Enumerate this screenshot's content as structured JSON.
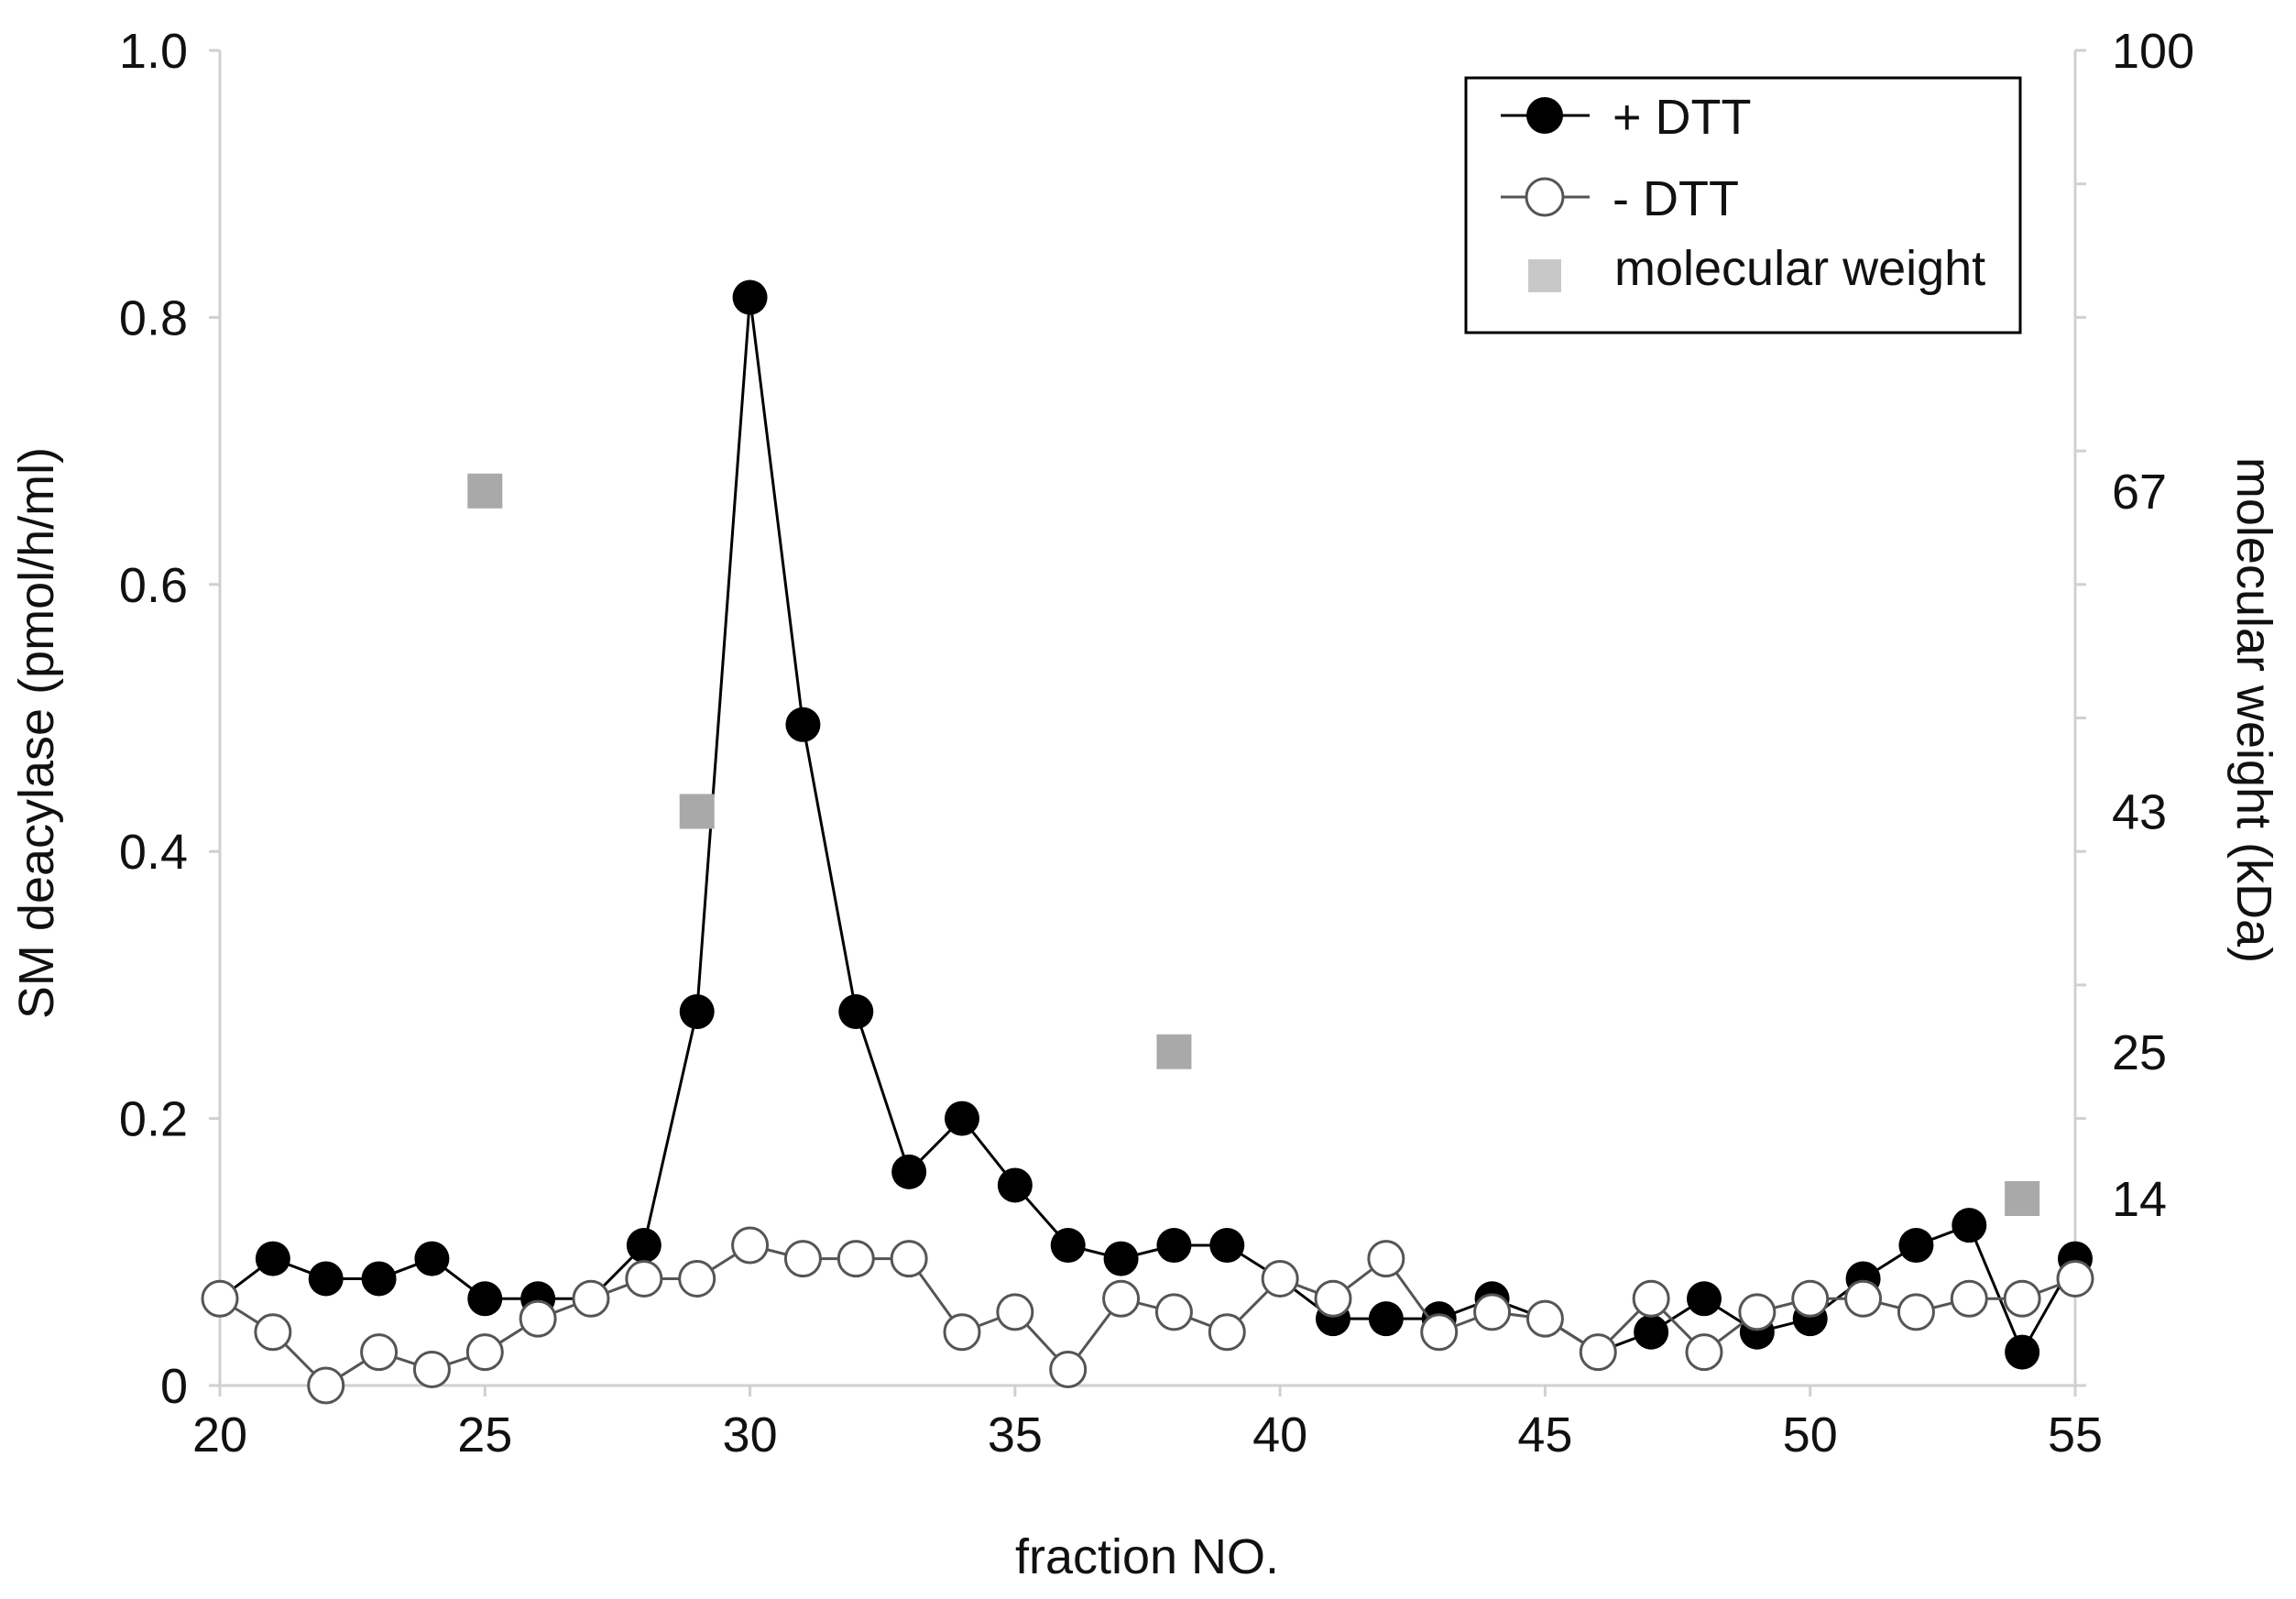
{
  "chart_data": {
    "type": "line",
    "xlabel": "fraction NO.",
    "ylabel": "SM deacylase (pmol/h/ml)",
    "y2label": "molecular weight (kDa)",
    "xlim": [
      20,
      55
    ],
    "ylim": [
      0,
      1.0
    ],
    "x_ticks": [
      "20",
      "25",
      "30",
      "35",
      "40",
      "45",
      "50",
      "55"
    ],
    "y_ticks": [
      "0",
      "0.2",
      "0.4",
      "0.6",
      "0.8",
      "1.0"
    ],
    "y2_ticks": [
      "14",
      "25",
      "43",
      "67",
      "100"
    ],
    "y2_tick_positions": [
      0.14,
      0.25,
      0.43,
      0.67,
      1.0
    ],
    "legend_position": "top-right",
    "grid": false,
    "series": [
      {
        "name": "+ DTT",
        "marker": "filled-circle",
        "color": "#000000",
        "x": [
          20,
          21,
          22,
          23,
          24,
          25,
          26,
          27,
          28,
          29,
          30,
          31,
          32,
          33,
          34,
          35,
          36,
          37,
          38,
          39,
          40,
          41,
          42,
          43,
          44,
          45,
          46,
          47,
          48,
          49,
          50,
          51,
          52,
          53,
          54,
          55
        ],
        "values": [
          0.065,
          0.095,
          0.08,
          0.08,
          0.095,
          0.065,
          0.065,
          0.065,
          0.105,
          0.28,
          0.815,
          0.495,
          0.28,
          0.16,
          0.2,
          0.15,
          0.105,
          0.095,
          0.105,
          0.105,
          0.08,
          0.05,
          0.05,
          0.05,
          0.065,
          0.05,
          0.025,
          0.04,
          0.065,
          0.04,
          0.05,
          0.08,
          0.105,
          0.12,
          0.025,
          0.095
        ]
      },
      {
        "name": "- DTT",
        "marker": "open-circle",
        "color": "#555555",
        "x": [
          20,
          21,
          22,
          23,
          24,
          25,
          26,
          27,
          28,
          29,
          30,
          31,
          32,
          33,
          34,
          35,
          36,
          37,
          38,
          39,
          40,
          41,
          42,
          43,
          44,
          45,
          46,
          47,
          48,
          49,
          50,
          51,
          52,
          53,
          54,
          55
        ],
        "values": [
          0.065,
          0.04,
          0.0,
          0.025,
          0.012,
          0.025,
          0.05,
          0.065,
          0.08,
          0.08,
          0.105,
          0.095,
          0.095,
          0.095,
          0.04,
          0.055,
          0.012,
          0.065,
          0.055,
          0.04,
          0.08,
          0.065,
          0.095,
          0.04,
          0.055,
          0.05,
          0.025,
          0.065,
          0.025,
          0.055,
          0.065,
          0.065,
          0.055,
          0.065,
          0.065,
          0.08
        ]
      },
      {
        "name": "molecular weight",
        "marker": "square",
        "color": "#a9a9a9",
        "x": [
          25,
          29,
          38,
          54
        ],
        "values": [
          0.67,
          0.43,
          0.25,
          0.14
        ]
      }
    ]
  }
}
